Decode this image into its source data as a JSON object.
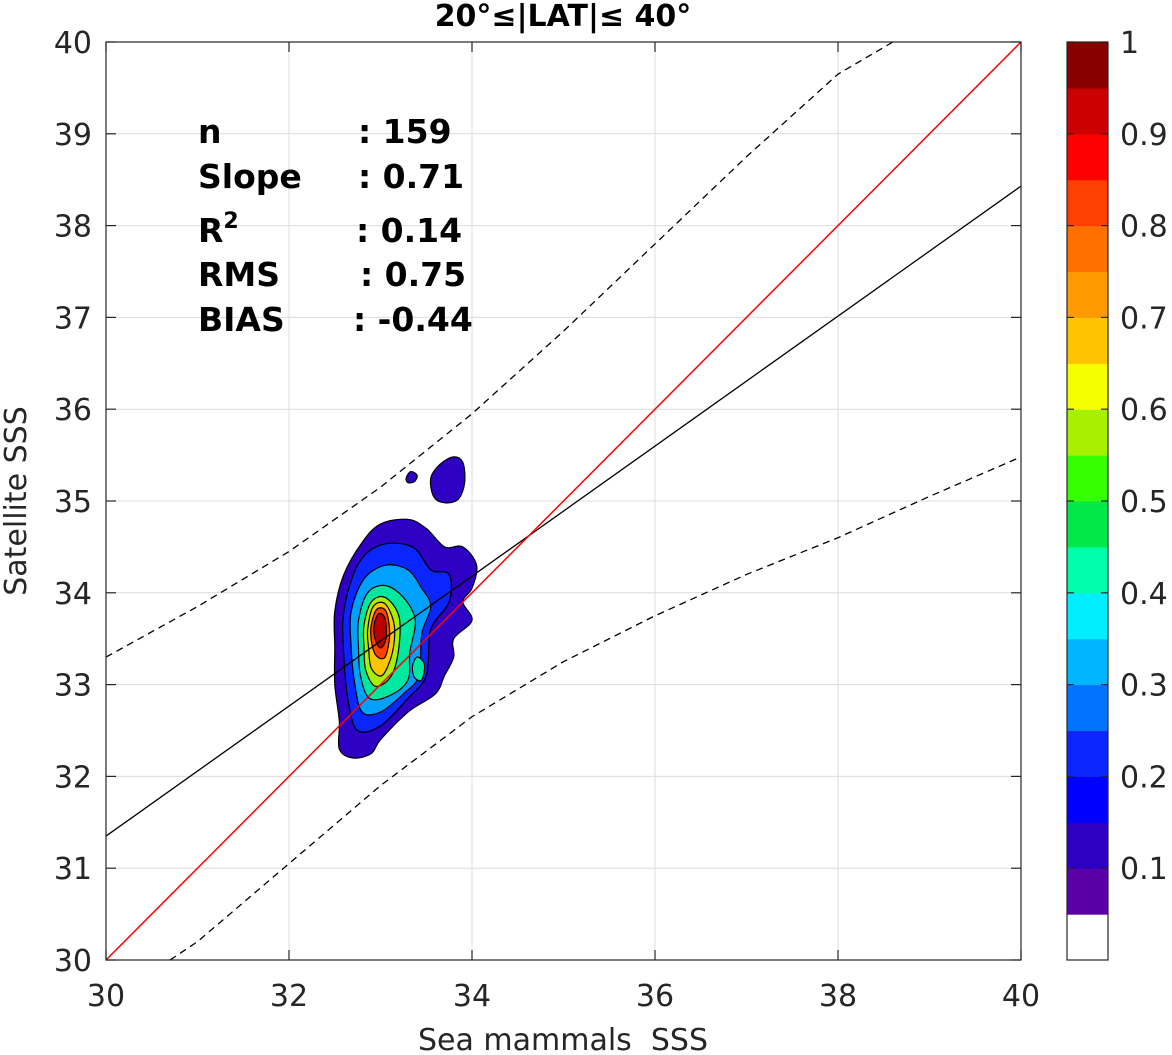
{
  "chart_data": {
    "type": "heatmap",
    "title": "20°≤|LAT|≤ 40°",
    "xlabel": "Sea mammals  SSS",
    "ylabel": "Satellite SSS",
    "xlim": [
      30,
      40
    ],
    "ylim": [
      30,
      40
    ],
    "x_ticks": [
      30,
      32,
      34,
      36,
      38,
      40
    ],
    "y_ticks": [
      30,
      31,
      32,
      33,
      34,
      35,
      36,
      37,
      38,
      39,
      40
    ],
    "grid": true,
    "stats": [
      {
        "label": "n",
        "value": ": 159"
      },
      {
        "label": "Slope",
        "value": ": 0.71"
      },
      {
        "label": "R",
        "sup": "2",
        "value": ": 0.14"
      },
      {
        "label": "RMS",
        "value": ": 0.75"
      },
      {
        "label": "BIAS",
        "value": ": -0.44"
      }
    ],
    "identity_line": {
      "x": [
        30,
        40
      ],
      "y": [
        30,
        40
      ],
      "color": "#ff0000"
    },
    "fit_line": {
      "x": [
        30,
        40
      ],
      "y": [
        31.35,
        38.43
      ],
      "color": "#000000"
    },
    "confidence_upper": {
      "x": [
        30,
        31,
        32,
        33,
        34,
        35,
        36,
        37,
        38,
        38.6
      ],
      "y": [
        33.3,
        33.85,
        34.45,
        35.15,
        35.95,
        36.85,
        37.8,
        38.75,
        39.65,
        40
      ]
    },
    "confidence_lower": {
      "x": [
        30.7,
        31,
        32,
        33,
        34,
        35,
        36,
        37,
        38,
        39,
        40
      ],
      "y": [
        30,
        30.2,
        31.05,
        31.9,
        32.65,
        33.25,
        33.75,
        34.2,
        34.6,
        35.05,
        35.48
      ]
    },
    "density_contours": [
      {
        "level": 0.05,
        "color": "#2e00c4",
        "points": [
          [
            32.5,
            33.8
          ],
          [
            32.6,
            34.2
          ],
          [
            32.8,
            34.55
          ],
          [
            33.0,
            34.75
          ],
          [
            33.3,
            34.8
          ],
          [
            33.5,
            34.7
          ],
          [
            33.7,
            34.5
          ],
          [
            33.9,
            34.5
          ],
          [
            34.05,
            34.3
          ],
          [
            34.0,
            34.05
          ],
          [
            33.9,
            33.9
          ],
          [
            34.0,
            33.7
          ],
          [
            33.8,
            33.5
          ],
          [
            33.8,
            33.3
          ],
          [
            33.7,
            33.1
          ],
          [
            33.6,
            32.9
          ],
          [
            33.3,
            32.7
          ],
          [
            33.0,
            32.4
          ],
          [
            32.9,
            32.25
          ],
          [
            32.7,
            32.2
          ],
          [
            32.55,
            32.3
          ],
          [
            32.55,
            32.6
          ],
          [
            32.5,
            33.0
          ],
          [
            32.5,
            33.4
          ]
        ]
      },
      {
        "level": 0.05,
        "color": "#2e00c4",
        "points": [
          [
            33.55,
            35.25
          ],
          [
            33.65,
            35.4
          ],
          [
            33.8,
            35.48
          ],
          [
            33.9,
            35.42
          ],
          [
            33.92,
            35.2
          ],
          [
            33.85,
            35.02
          ],
          [
            33.7,
            34.98
          ],
          [
            33.58,
            35.05
          ]
        ]
      },
      {
        "level": 0.05,
        "color": "#2e00c4",
        "points": [
          [
            33.28,
            35.25
          ],
          [
            33.33,
            35.32
          ],
          [
            33.4,
            35.28
          ],
          [
            33.37,
            35.21
          ],
          [
            33.3,
            35.2
          ]
        ]
      },
      {
        "level": 0.2,
        "color": "#0b25ff",
        "points": [
          [
            32.6,
            33.8
          ],
          [
            32.75,
            34.3
          ],
          [
            33.0,
            34.52
          ],
          [
            33.35,
            34.5
          ],
          [
            33.55,
            34.25
          ],
          [
            33.75,
            34.2
          ],
          [
            33.75,
            33.9
          ],
          [
            33.55,
            33.6
          ],
          [
            33.5,
            33.1
          ],
          [
            33.3,
            32.85
          ],
          [
            33.0,
            32.55
          ],
          [
            32.75,
            32.5
          ],
          [
            32.65,
            32.8
          ],
          [
            32.6,
            33.3
          ]
        ]
      },
      {
        "level": 0.3,
        "color": "#00a0ff",
        "points": [
          [
            32.68,
            33.8
          ],
          [
            32.82,
            34.15
          ],
          [
            33.05,
            34.3
          ],
          [
            33.3,
            34.25
          ],
          [
            33.45,
            34.05
          ],
          [
            33.55,
            33.85
          ],
          [
            33.45,
            33.55
          ],
          [
            33.42,
            33.1
          ],
          [
            33.25,
            32.9
          ],
          [
            33.0,
            32.7
          ],
          [
            32.8,
            32.7
          ],
          [
            32.72,
            33.0
          ],
          [
            32.68,
            33.4
          ]
        ]
      },
      {
        "level": 0.45,
        "color": "#00e8a0",
        "points": [
          [
            32.76,
            33.7
          ],
          [
            32.86,
            34.0
          ],
          [
            33.05,
            34.08
          ],
          [
            33.25,
            33.95
          ],
          [
            33.38,
            33.7
          ],
          [
            33.32,
            33.35
          ],
          [
            33.3,
            33.05
          ],
          [
            33.1,
            32.88
          ],
          [
            32.88,
            32.85
          ],
          [
            32.78,
            33.1
          ],
          [
            32.76,
            33.4
          ]
        ]
      },
      {
        "level": 0.55,
        "color": "#a6f000",
        "points": [
          [
            32.82,
            33.65
          ],
          [
            32.9,
            33.9
          ],
          [
            33.05,
            33.95
          ],
          [
            33.2,
            33.75
          ],
          [
            33.2,
            33.4
          ],
          [
            33.12,
            33.1
          ],
          [
            32.95,
            32.98
          ],
          [
            32.84,
            33.15
          ],
          [
            32.82,
            33.4
          ]
        ]
      },
      {
        "level": 0.7,
        "color": "#ffc400",
        "points": [
          [
            32.86,
            33.6
          ],
          [
            32.92,
            33.85
          ],
          [
            33.05,
            33.88
          ],
          [
            33.15,
            33.65
          ],
          [
            33.13,
            33.35
          ],
          [
            33.02,
            33.1
          ],
          [
            32.9,
            33.18
          ],
          [
            32.87,
            33.4
          ]
        ]
      },
      {
        "level": 0.85,
        "color": "#ff4000",
        "points": [
          [
            32.9,
            33.65
          ],
          [
            32.96,
            33.82
          ],
          [
            33.06,
            33.8
          ],
          [
            33.1,
            33.55
          ],
          [
            33.05,
            33.3
          ],
          [
            32.95,
            33.32
          ],
          [
            32.9,
            33.48
          ]
        ]
      },
      {
        "level": 0.95,
        "color": "#b80000",
        "points": [
          [
            32.93,
            33.65
          ],
          [
            32.98,
            33.77
          ],
          [
            33.05,
            33.72
          ],
          [
            33.06,
            33.5
          ],
          [
            33.0,
            33.4
          ],
          [
            32.94,
            33.5
          ]
        ]
      },
      {
        "level": 0.4,
        "color": "#00e8a0",
        "points": [
          [
            33.35,
            33.2
          ],
          [
            33.4,
            33.3
          ],
          [
            33.48,
            33.22
          ],
          [
            33.45,
            33.05
          ],
          [
            33.37,
            33.08
          ]
        ]
      }
    ],
    "colorbar": {
      "colors": [
        "#ffffff",
        "#5a00a8",
        "#2e00c4",
        "#0000ff",
        "#0b25ff",
        "#0073ff",
        "#00b4ff",
        "#00eeff",
        "#00ffaa",
        "#00e84a",
        "#35ff00",
        "#a6f000",
        "#f5ff00",
        "#ffc400",
        "#ff9a00",
        "#ff7000",
        "#ff4000",
        "#ff0000",
        "#cc0000",
        "#880000"
      ],
      "ticks": [
        0.1,
        0.2,
        0.3,
        0.4,
        0.5,
        0.6,
        0.7,
        0.8,
        0.9,
        1
      ],
      "tick_labels": [
        "0.1",
        "0.2",
        "0.3",
        "0.4",
        "0.5",
        "0.6",
        "0.7",
        "0.8",
        "0.9",
        "1"
      ],
      "range": [
        0,
        1
      ]
    }
  }
}
